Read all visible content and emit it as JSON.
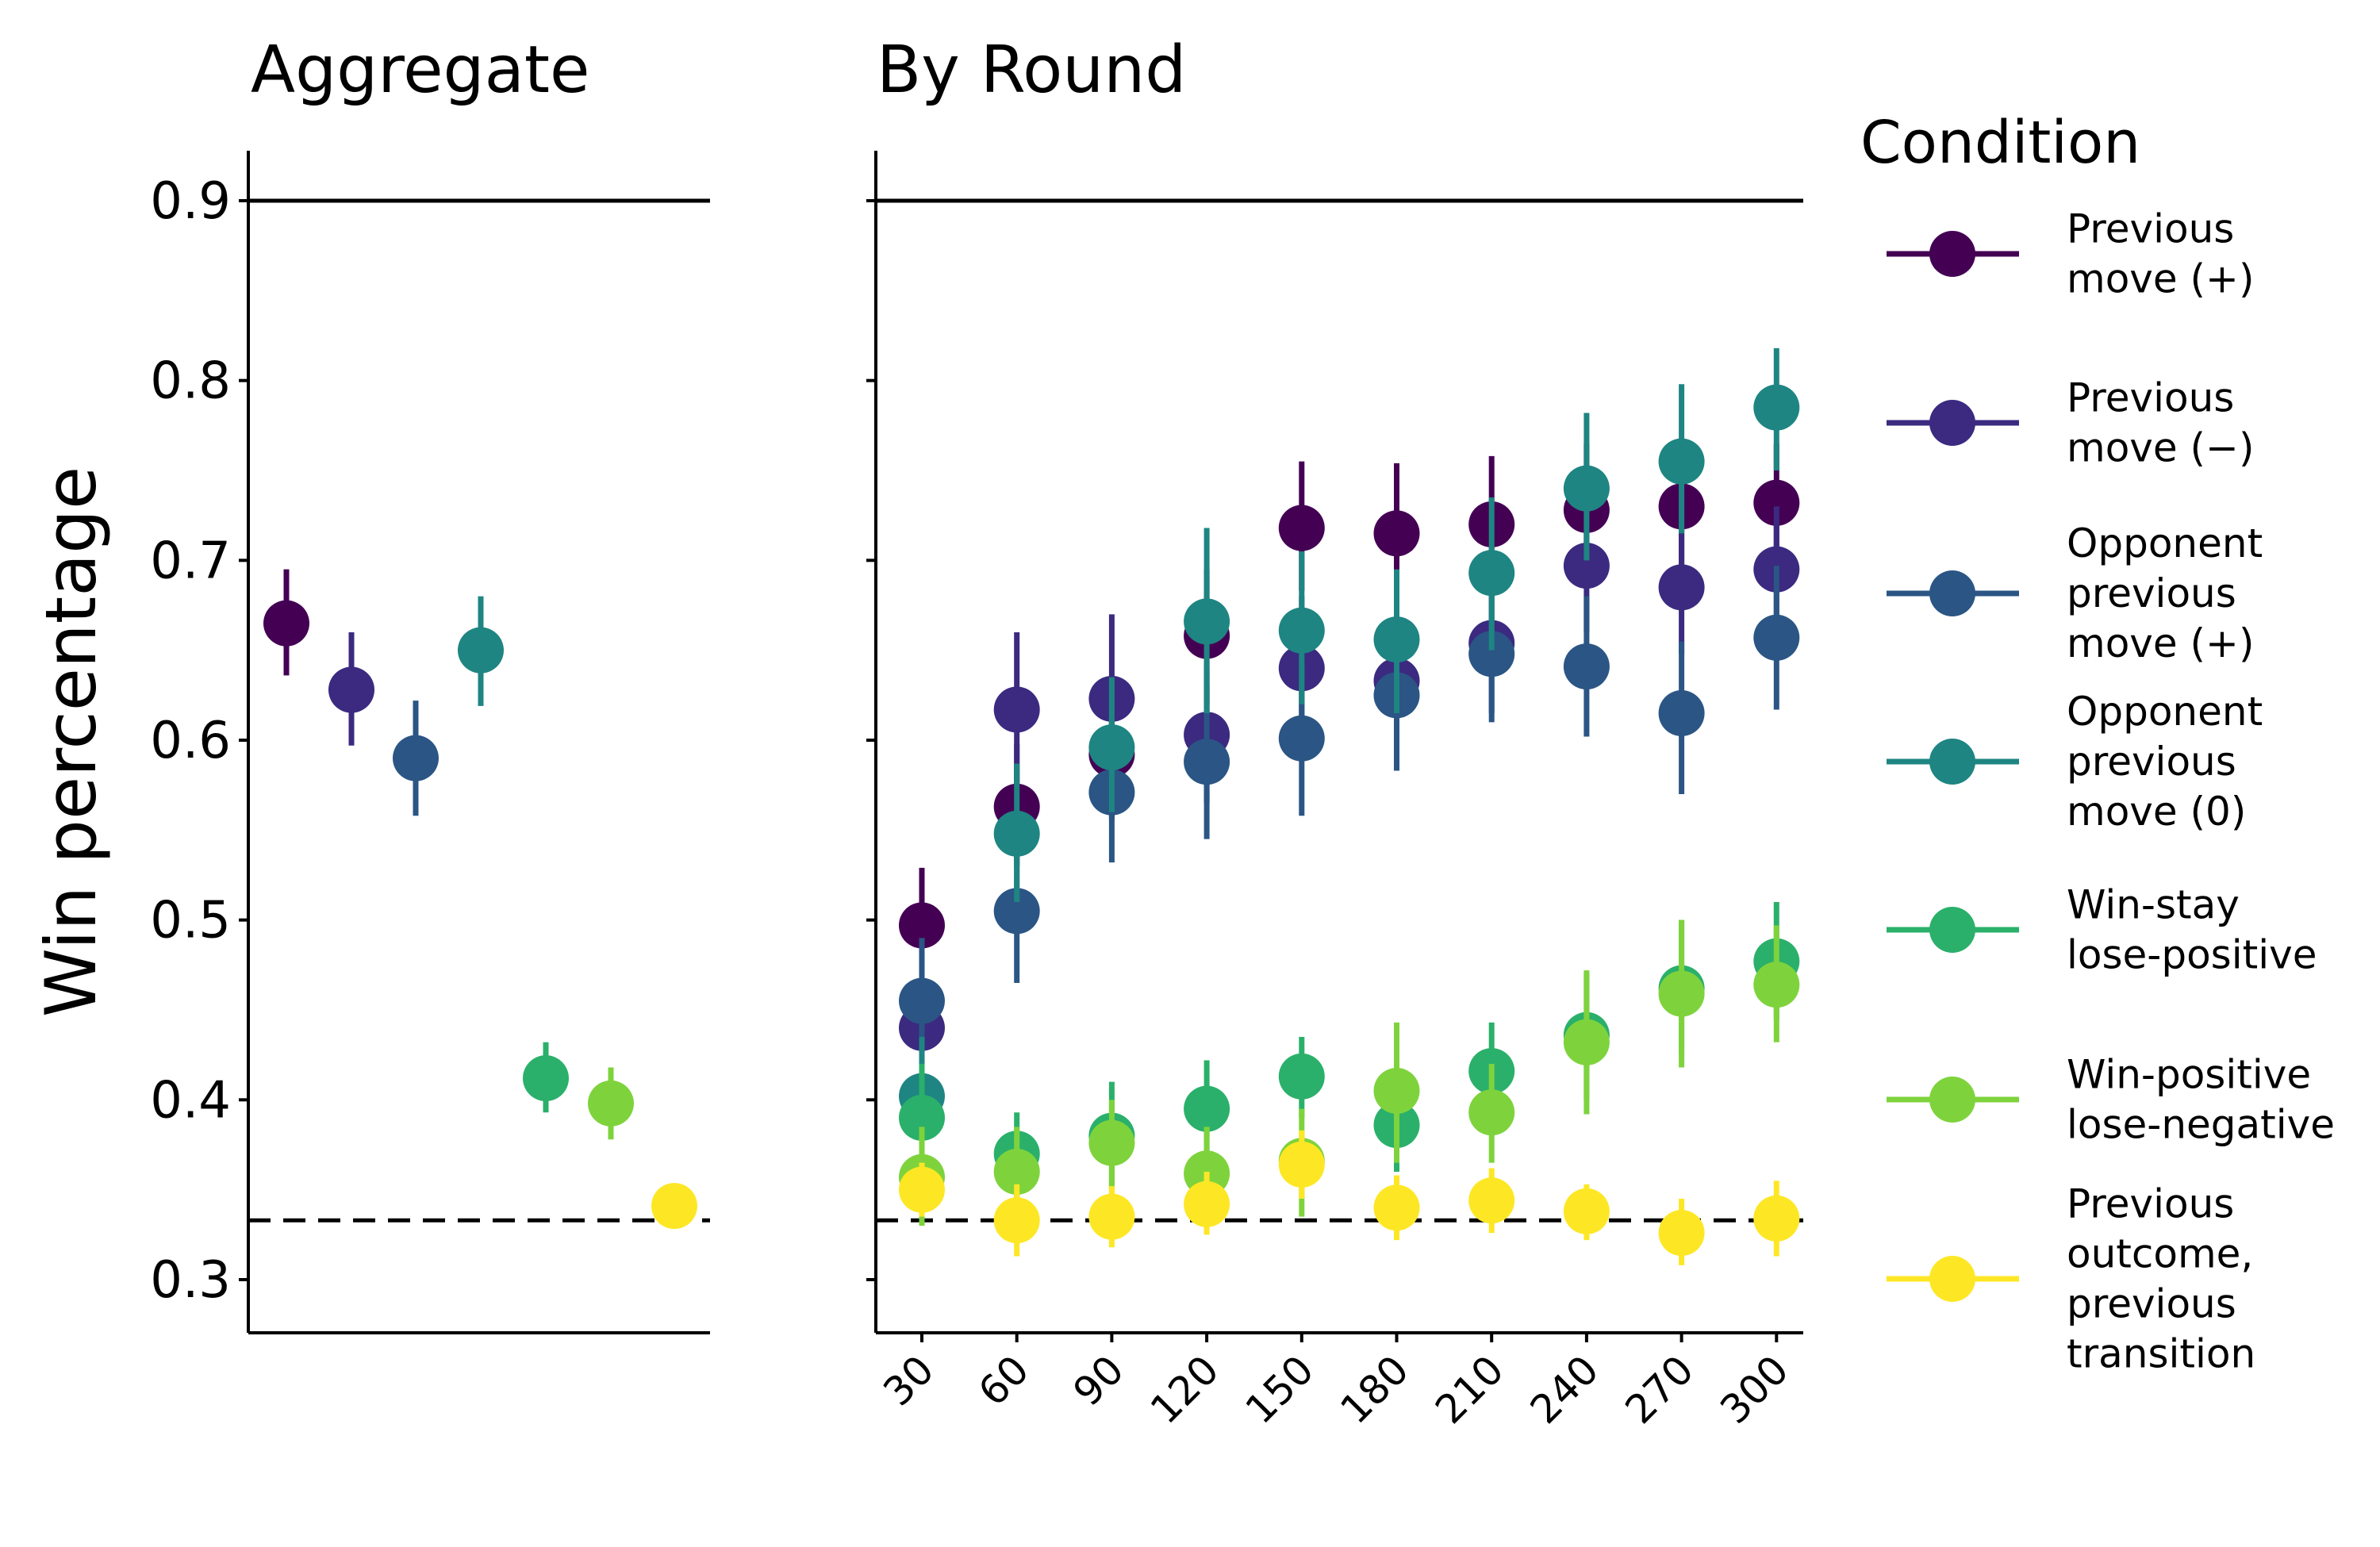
{
  "chart_data": {
    "type": "scatter",
    "ylabel": "Win percentage",
    "ylim": [
      0.27,
      0.93
    ],
    "yticks": [
      "0.3",
      "0.4",
      "0.5",
      "0.6",
      "0.7",
      "0.8",
      "0.9"
    ],
    "reference_lines": {
      "upper": 0.9,
      "chance": 0.333
    },
    "legend": {
      "title": "Condition",
      "placement": "right"
    },
    "series": [
      {
        "name": [
          "Previous",
          "move (+)"
        ],
        "color": "#440154",
        "aggregate": {
          "mean": 0.665,
          "lo": 0.636,
          "hi": 0.695
        },
        "by_round": [
          [
            0.497,
            0.465,
            0.529
          ],
          [
            0.563,
            0.53,
            0.598
          ],
          [
            0.592,
            0.556,
            0.63
          ],
          [
            0.658,
            0.62,
            0.695
          ],
          [
            0.718,
            0.683,
            0.755
          ],
          [
            0.715,
            0.678,
            0.754
          ],
          [
            0.72,
            0.683,
            0.758
          ],
          [
            0.728,
            0.69,
            0.765
          ],
          [
            0.73,
            0.695,
            0.765
          ],
          [
            0.732,
            0.7,
            0.765
          ]
        ]
      },
      {
        "name": [
          "Previous",
          "move (−)"
        ],
        "color": "#3b2a80",
        "aggregate": {
          "mean": 0.628,
          "lo": 0.597,
          "hi": 0.66
        },
        "by_round": [
          [
            0.44,
            0.41,
            0.47
          ],
          [
            0.617,
            0.576,
            0.66
          ],
          [
            0.623,
            0.585,
            0.67
          ],
          [
            0.603,
            0.565,
            0.64
          ],
          [
            0.64,
            0.6,
            0.68
          ],
          [
            0.633,
            0.595,
            0.67
          ],
          [
            0.654,
            0.615,
            0.692
          ],
          [
            0.697,
            0.66,
            0.733
          ],
          [
            0.685,
            0.648,
            0.72
          ],
          [
            0.695,
            0.66,
            0.73
          ]
        ]
      },
      {
        "name": [
          "Opponent",
          "previous",
          "move (+)"
        ],
        "color": "#2b5584",
        "aggregate": {
          "mean": 0.59,
          "lo": 0.558,
          "hi": 0.622
        },
        "by_round": [
          [
            0.455,
            0.42,
            0.49
          ],
          [
            0.505,
            0.465,
            0.545
          ],
          [
            0.571,
            0.532,
            0.61
          ],
          [
            0.588,
            0.545,
            0.63
          ],
          [
            0.601,
            0.558,
            0.645
          ],
          [
            0.625,
            0.583,
            0.665
          ],
          [
            0.648,
            0.61,
            0.685
          ],
          [
            0.641,
            0.602,
            0.68
          ],
          [
            0.615,
            0.57,
            0.655
          ],
          [
            0.657,
            0.617,
            0.697
          ]
        ]
      },
      {
        "name": [
          "Opponent",
          "previous",
          "move (0)"
        ],
        "color": "#1e8582",
        "aggregate": {
          "mean": 0.65,
          "lo": 0.619,
          "hi": 0.68
        },
        "by_round": [
          [
            0.402,
            0.37,
            0.435
          ],
          [
            0.548,
            0.51,
            0.587
          ],
          [
            0.596,
            0.56,
            0.635
          ],
          [
            0.666,
            0.615,
            0.718
          ],
          [
            0.661,
            0.62,
            0.705
          ],
          [
            0.656,
            0.615,
            0.695
          ],
          [
            0.693,
            0.65,
            0.735
          ],
          [
            0.74,
            0.7,
            0.782
          ],
          [
            0.755,
            0.715,
            0.798
          ],
          [
            0.785,
            0.75,
            0.818
          ]
        ]
      },
      {
        "name": [
          "Win-stay",
          "lose-positive"
        ],
        "color": "#2ab06a",
        "aggregate": {
          "mean": 0.412,
          "lo": 0.393,
          "hi": 0.432
        },
        "by_round": [
          [
            0.39,
            0.36,
            0.42
          ],
          [
            0.37,
            0.345,
            0.393
          ],
          [
            0.38,
            0.35,
            0.41
          ],
          [
            0.395,
            0.368,
            0.422
          ],
          [
            0.413,
            0.39,
            0.435
          ],
          [
            0.386,
            0.36,
            0.41
          ],
          [
            0.416,
            0.39,
            0.443
          ],
          [
            0.436,
            0.4,
            0.47
          ],
          [
            0.462,
            0.425,
            0.5
          ],
          [
            0.477,
            0.445,
            0.51
          ]
        ]
      },
      {
        "name": [
          "Win-positive",
          "lose-negative"
        ],
        "color": "#7ed33c",
        "aggregate": {
          "mean": 0.398,
          "lo": 0.378,
          "hi": 0.418
        },
        "by_round": [
          [
            0.357,
            0.33,
            0.385
          ],
          [
            0.36,
            0.335,
            0.385
          ],
          [
            0.376,
            0.35,
            0.4
          ],
          [
            0.359,
            0.335,
            0.385
          ],
          [
            0.366,
            0.335,
            0.395
          ],
          [
            0.405,
            0.365,
            0.443
          ],
          [
            0.393,
            0.365,
            0.42
          ],
          [
            0.432,
            0.392,
            0.472
          ],
          [
            0.459,
            0.418,
            0.5
          ],
          [
            0.464,
            0.432,
            0.497
          ]
        ]
      },
      {
        "name": [
          "Previous",
          "outcome,",
          "previous",
          "transition"
        ],
        "color": "#fde725",
        "aggregate": {
          "mean": 0.341,
          "lo": 0.33,
          "hi": 0.352
        },
        "by_round": [
          [
            0.35,
            0.335,
            0.365
          ],
          [
            0.333,
            0.313,
            0.353
          ],
          [
            0.335,
            0.318,
            0.352
          ],
          [
            0.342,
            0.325,
            0.36
          ],
          [
            0.364,
            0.345,
            0.383
          ],
          [
            0.34,
            0.322,
            0.358
          ],
          [
            0.344,
            0.326,
            0.362
          ],
          [
            0.338,
            0.322,
            0.353
          ],
          [
            0.326,
            0.308,
            0.345
          ],
          [
            0.334,
            0.313,
            0.355
          ]
        ]
      }
    ],
    "panels": [
      {
        "title": "Aggregate"
      },
      {
        "title": "By Round",
        "x_ticks": [
          "30",
          "60",
          "90",
          "120",
          "150",
          "180",
          "210",
          "240",
          "270",
          "300"
        ]
      }
    ]
  }
}
